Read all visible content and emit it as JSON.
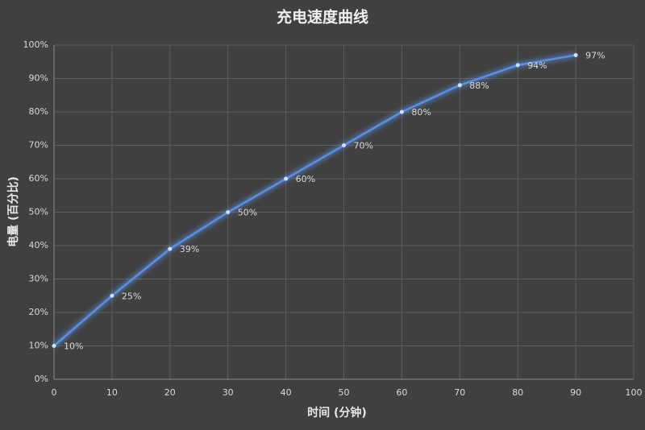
{
  "chart_data": {
    "type": "line",
    "title": "充电速度曲线",
    "x_label": "时间 (分钟)",
    "y_label": "电量 (百分比)",
    "x": [
      0,
      10,
      20,
      30,
      40,
      50,
      60,
      70,
      80,
      90
    ],
    "series": [
      {
        "name": "电量",
        "color": "#5b8fe0",
        "values": [
          10,
          25,
          39,
          50,
          60,
          70,
          80,
          88,
          94,
          97
        ],
        "value_labels": [
          "10%",
          "25%",
          "39%",
          "50%",
          "60%",
          "70%",
          "80%",
          "88%",
          "94%",
          "97%"
        ]
      }
    ],
    "xlim": [
      0,
      100
    ],
    "xticks": [
      0,
      10,
      20,
      30,
      40,
      50,
      60,
      70,
      80,
      90,
      100
    ],
    "ylim": [
      0,
      100
    ],
    "yticks": [
      {
        "value": 0,
        "label": "0%"
      },
      {
        "value": 10,
        "label": "10%"
      },
      {
        "value": 20,
        "label": "20%"
      },
      {
        "value": 30,
        "label": "30%"
      },
      {
        "value": 40,
        "label": "40%"
      },
      {
        "value": 50,
        "label": "50%"
      },
      {
        "value": 60,
        "label": "60%"
      },
      {
        "value": 70,
        "label": "70%"
      },
      {
        "value": 80,
        "label": "80%"
      },
      {
        "value": 90,
        "label": "90%"
      },
      {
        "value": 100,
        "label": "100%"
      }
    ],
    "grid": true
  }
}
